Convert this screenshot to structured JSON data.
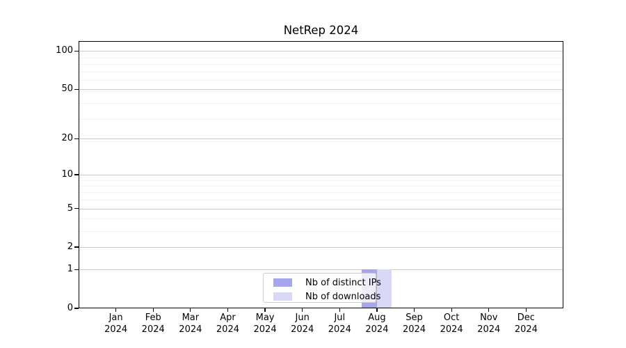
{
  "figure": {
    "background": "#ffffff"
  },
  "chart_data": {
    "type": "bar",
    "title": "NetRep 2024",
    "xlabel": "",
    "ylabel": "",
    "scale": "log10(1+y)",
    "months": [
      "Jan",
      "Feb",
      "Mar",
      "Apr",
      "May",
      "Jun",
      "Jul",
      "Aug",
      "Sep",
      "Oct",
      "Nov",
      "Dec"
    ],
    "year_label": "2024",
    "categories": [
      "Jan 2024",
      "Feb 2024",
      "Mar 2024",
      "Apr 2024",
      "May 2024",
      "Jun 2024",
      "Jul 2024",
      "Aug 2024",
      "Sep 2024",
      "Oct 2024",
      "Nov 2024",
      "Dec 2024"
    ],
    "series": [
      {
        "name": "Nb of distinct IPs",
        "color": "#a6a6ee",
        "values": [
          0,
          0,
          0,
          0,
          0,
          0,
          0,
          1,
          0,
          0,
          0,
          0
        ]
      },
      {
        "name": "Nb of downloads",
        "color": "#d9d9f7",
        "values": [
          0,
          0,
          0,
          0,
          0,
          0,
          0,
          1,
          0,
          0,
          0,
          0
        ]
      }
    ],
    "y_ticks": [
      0,
      1,
      2,
      5,
      10,
      20,
      50,
      100
    ],
    "y_minor_gridlines": [
      3,
      4,
      6,
      7,
      8,
      9,
      19,
      29,
      39,
      49,
      59,
      69,
      79,
      89
    ],
    "ylim": [
      0,
      120
    ],
    "grid": "horizontal",
    "legend_position": "lower center",
    "colors": {
      "major_grid": "#c9c9c9",
      "minor_grid": "#f0f0f0",
      "axis": "#000000",
      "legend_border": "#cccccc"
    }
  }
}
